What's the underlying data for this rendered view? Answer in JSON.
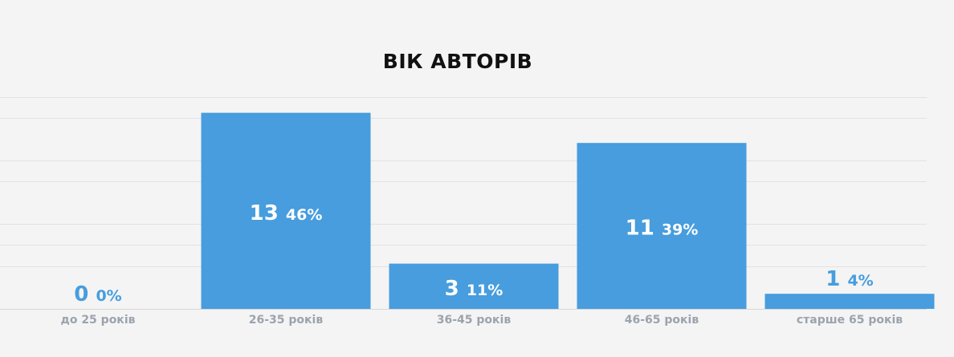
{
  "chart_data": {
    "type": "bar",
    "title": "ВІК АВТОРІВ",
    "categories": [
      "до 25 років",
      "26-35 років",
      "36-45 років",
      "46-65 років",
      "старше 65 років"
    ],
    "values": [
      0,
      13,
      3,
      11,
      1
    ],
    "percent_labels": [
      "0%",
      "46%",
      "11%",
      "39%",
      "4%"
    ],
    "ylim": [
      0,
      14
    ],
    "grid": true,
    "bar_color": "#479ddd",
    "inside_label_color": "#ffffff",
    "outside_label_color": "#479ddd",
    "tick_label_color": "#9ba3ad",
    "gridline_color": "#e2e2e2"
  }
}
